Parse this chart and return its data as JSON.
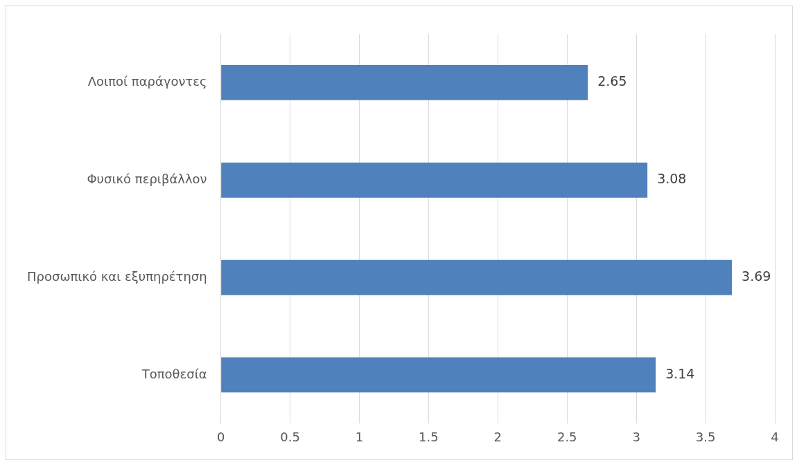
{
  "chart_data": {
    "type": "bar",
    "orientation": "horizontal",
    "categories": [
      "Λοιποί παράγοντες",
      "Φυσικό περιβάλλον",
      "Προσωπικό και εξυπηρέτηση",
      "Τοποθεσία"
    ],
    "values": [
      2.65,
      3.08,
      3.69,
      3.14
    ],
    "color": "#4f81bd",
    "xlim": [
      0,
      4
    ],
    "xticks": [
      0,
      0.5,
      1,
      1.5,
      2,
      2.5,
      3,
      3.5,
      4
    ],
    "grid": "x",
    "data_labels": true,
    "legend": false
  }
}
